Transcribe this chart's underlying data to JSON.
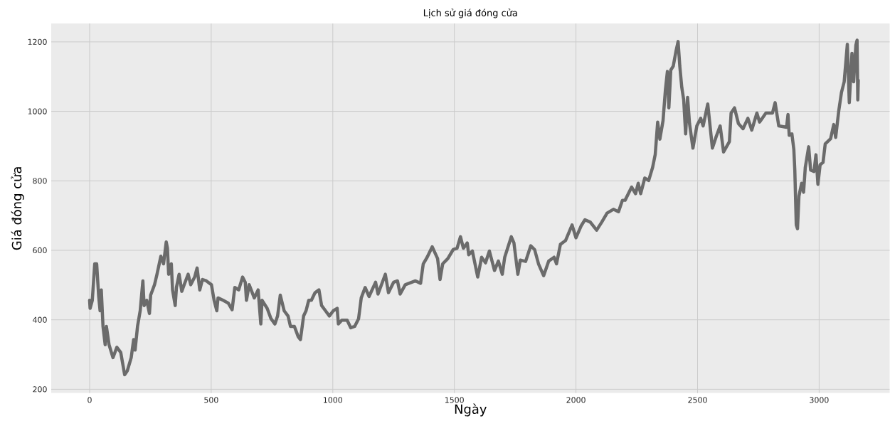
{
  "chart_data": {
    "type": "line",
    "title": "Lịch sử giá đóng cửa",
    "xlabel": "Ngày",
    "ylabel": "Giá đóng cửa",
    "color": "#6b6b6b",
    "grid": true,
    "xlim": [
      -158,
      3290
    ],
    "ylim": [
      189,
      1253
    ],
    "xticks": [
      0,
      500,
      1000,
      1500,
      2000,
      2500,
      3000
    ],
    "yticks": [
      200,
      400,
      600,
      800,
      1000,
      1200
    ],
    "x": [
      0,
      2,
      11,
      21,
      29,
      37,
      43,
      48,
      55,
      64,
      69,
      80,
      96,
      112,
      128,
      144,
      155,
      171,
      181,
      187,
      197,
      208,
      219,
      224,
      235,
      246,
      251,
      267,
      277,
      293,
      304,
      315,
      320,
      325,
      336,
      341,
      352,
      357,
      368,
      379,
      389,
      405,
      416,
      432,
      442,
      453,
      464,
      480,
      501,
      512,
      523,
      528,
      549,
      570,
      586,
      597,
      613,
      629,
      640,
      645,
      656,
      677,
      693,
      704,
      709,
      730,
      746,
      762,
      773,
      784,
      800,
      816,
      826,
      842,
      858,
      867,
      880,
      890,
      901,
      912,
      927,
      943,
      954,
      970,
      986,
      1002,
      1018,
      1023,
      1037,
      1059,
      1074,
      1090,
      1106,
      1117,
      1133,
      1149,
      1176,
      1186,
      1216,
      1229,
      1250,
      1266,
      1277,
      1298,
      1340,
      1361,
      1372,
      1388,
      1409,
      1431,
      1441,
      1452,
      1473,
      1495,
      1511,
      1525,
      1537,
      1553,
      1559,
      1574,
      1596,
      1612,
      1628,
      1644,
      1665,
      1681,
      1697,
      1707,
      1734,
      1745,
      1761,
      1771,
      1793,
      1814,
      1830,
      1846,
      1867,
      1888,
      1910,
      1920,
      1936,
      1957,
      1984,
      2000,
      2021,
      2037,
      2059,
      2085,
      2106,
      2128,
      2154,
      2175,
      2191,
      2202,
      2229,
      2245,
      2256,
      2266,
      2283,
      2299,
      2315,
      2326,
      2336,
      2345,
      2358,
      2368,
      2376,
      2382,
      2390,
      2400,
      2411,
      2420,
      2427,
      2435,
      2443,
      2451,
      2459,
      2467,
      2481,
      2497,
      2513,
      2523,
      2542,
      2561,
      2577,
      2593,
      2607,
      2631,
      2638,
      2652,
      2668,
      2687,
      2707,
      2723,
      2744,
      2755,
      2781,
      2808,
      2819,
      2834,
      2866,
      2872,
      2877,
      2888,
      2896,
      2900,
      2906,
      2911,
      2917,
      2928,
      2936,
      2943,
      2957,
      2965,
      2979,
      2987,
      2995,
      3004,
      3016,
      3025,
      3047,
      3060,
      3068,
      3081,
      3092,
      3103,
      3116,
      3124,
      3135,
      3142,
      3151,
      3156,
      3159,
      3161
    ],
    "values": [
      456,
      433,
      456,
      561,
      561,
      470,
      426,
      486,
      381,
      328,
      381,
      328,
      291,
      321,
      306,
      242,
      253,
      291,
      343,
      313,
      381,
      426,
      512,
      441,
      456,
      418,
      471,
      501,
      531,
      583,
      561,
      624,
      606,
      531,
      561,
      486,
      441,
      493,
      531,
      482,
      501,
      531,
      501,
      523,
      549,
      486,
      516,
      512,
      501,
      456,
      426,
      463,
      456,
      448,
      429,
      493,
      486,
      523,
      508,
      456,
      501,
      463,
      486,
      388,
      456,
      433,
      403,
      388,
      411,
      471,
      426,
      411,
      381,
      381,
      351,
      343,
      411,
      426,
      456,
      456,
      478,
      486,
      441,
      426,
      411,
      426,
      433,
      388,
      399,
      399,
      377,
      381,
      403,
      463,
      493,
      467,
      508,
      474,
      531,
      478,
      508,
      512,
      474,
      501,
      512,
      505,
      561,
      580,
      610,
      576,
      516,
      561,
      576,
      602,
      606,
      639,
      606,
      621,
      587,
      598,
      523,
      580,
      564,
      598,
      542,
      569,
      531,
      580,
      639,
      621,
      531,
      572,
      568,
      613,
      602,
      561,
      527,
      569,
      580,
      561,
      617,
      628,
      673,
      636,
      670,
      688,
      681,
      658,
      681,
      707,
      718,
      711,
      744,
      744,
      782,
      763,
      793,
      763,
      808,
      801,
      838,
      876,
      969,
      920,
      973,
      1063,
      1115,
      1010,
      1119,
      1130,
      1172,
      1201,
      1130,
      1070,
      1033,
      935,
      1040,
      965,
      894,
      958,
      980,
      958,
      1021,
      894,
      928,
      958,
      883,
      913,
      995,
      1010,
      965,
      950,
      980,
      946,
      995,
      969,
      995,
      995,
      1025,
      958,
      954,
      991,
      931,
      935,
      890,
      830,
      673,
      662,
      756,
      793,
      767,
      838,
      898,
      831,
      827,
      875,
      790,
      846,
      853,
      906,
      921,
      962,
      925,
      1003,
      1055,
      1085,
      1193,
      1025,
      1167,
      1085,
      1190,
      1205,
      1033,
      1089
    ]
  }
}
